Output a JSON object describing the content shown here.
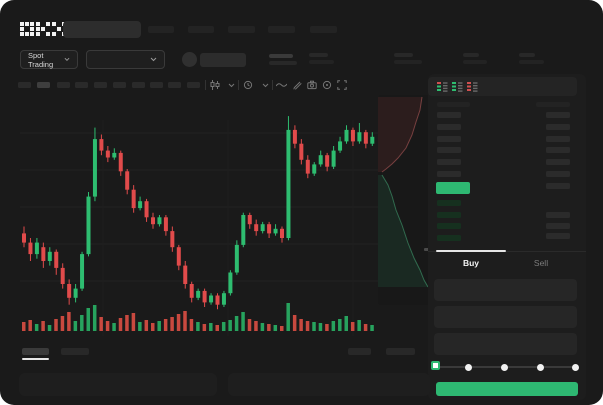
{
  "brand": {
    "logo_text": "OKX"
  },
  "market_bar": {
    "market_selector_label": "Spot Trading"
  },
  "toolbar": {
    "timeframe_button_count": 10,
    "icons": [
      "candlestick-style-icon",
      "chevron-down-icon",
      "interval-clock-icon",
      "chevron-down-icon",
      "wave-line-icon",
      "pencil-draw-icon",
      "camera-icon",
      "circle-indicator-icon",
      "fullscreen-icon"
    ]
  },
  "order_book": {
    "view_icons": [
      "book-both-icon",
      "book-bids-icon",
      "book-asks-icon"
    ],
    "ask_row_count": 6,
    "bid_row_count": 4
  },
  "trade_panel": {
    "buy_tab_label": "Buy",
    "sell_tab_label": "Sell",
    "input_count": 3,
    "slider_stop_count": 5
  },
  "colors": {
    "window_bg": "#1a1a1a",
    "panel_bg": "#1e1e1e",
    "accent_green": "#2eb872",
    "candle_up": "#2ebd70",
    "candle_down": "#e14b4b",
    "volume_up": "#27a35e",
    "volume_down": "#c9493f",
    "depth_ask_line": "#a05555",
    "depth_bid_line": "#3f9e74"
  },
  "chart_data": {
    "type": "candlestick",
    "title": "",
    "value_scale": [
      0,
      100
    ],
    "grid": true,
    "series": [
      {
        "name": "price",
        "candles": [
          [
            42,
            45,
            36,
            38
          ],
          [
            38,
            40,
            30,
            33
          ],
          [
            33,
            40,
            31,
            38
          ],
          [
            36,
            38,
            27,
            30
          ],
          [
            30,
            36,
            28,
            34
          ],
          [
            34,
            35,
            24,
            27
          ],
          [
            27,
            29,
            18,
            20
          ],
          [
            20,
            22,
            11,
            14
          ],
          [
            14,
            20,
            12,
            18
          ],
          [
            18,
            34,
            17,
            33
          ],
          [
            33,
            60,
            32,
            58
          ],
          [
            58,
            88,
            56,
            83
          ],
          [
            83,
            85,
            76,
            78
          ],
          [
            78,
            80,
            73,
            75
          ],
          [
            75,
            79,
            74,
            77
          ],
          [
            77,
            78,
            67,
            69
          ],
          [
            69,
            70,
            59,
            61
          ],
          [
            61,
            63,
            51,
            53
          ],
          [
            53,
            58,
            52,
            56
          ],
          [
            56,
            57,
            47,
            49
          ],
          [
            49,
            51,
            44,
            46
          ],
          [
            46,
            50,
            45,
            49
          ],
          [
            49,
            50,
            41,
            43
          ],
          [
            43,
            45,
            34,
            36
          ],
          [
            36,
            37,
            26,
            28
          ],
          [
            28,
            30,
            18,
            20
          ],
          [
            20,
            21,
            12,
            14
          ],
          [
            14,
            18,
            13,
            17
          ],
          [
            17,
            18,
            10,
            12
          ],
          [
            12,
            16,
            11,
            15
          ],
          [
            15,
            16,
            9,
            11
          ],
          [
            11,
            17,
            10,
            16
          ],
          [
            16,
            26,
            15,
            25
          ],
          [
            25,
            39,
            24,
            37
          ],
          [
            37,
            51,
            36,
            50
          ],
          [
            50,
            51,
            44,
            46
          ],
          [
            46,
            48,
            41,
            43
          ],
          [
            43,
            47,
            42,
            46
          ],
          [
            46,
            47,
            40,
            42
          ],
          [
            42,
            46,
            41,
            44
          ],
          [
            44,
            45,
            38,
            40
          ],
          [
            40,
            93,
            39,
            87
          ],
          [
            87,
            89,
            79,
            81
          ],
          [
            81,
            83,
            72,
            74
          ],
          [
            74,
            76,
            66,
            68
          ],
          [
            68,
            73,
            67,
            72
          ],
          [
            72,
            78,
            71,
            76
          ],
          [
            76,
            77,
            69,
            71
          ],
          [
            71,
            80,
            70,
            78
          ],
          [
            78,
            84,
            77,
            82
          ],
          [
            82,
            89,
            81,
            87
          ],
          [
            87,
            88,
            80,
            82
          ],
          [
            82,
            90,
            81,
            86
          ],
          [
            86,
            87,
            79,
            81
          ],
          [
            81,
            86,
            80,
            84
          ]
        ]
      },
      {
        "name": "volume",
        "values": [
          9,
          11,
          7,
          10,
          6,
          12,
          15,
          19,
          10,
          16,
          23,
          26,
          14,
          10,
          8,
          13,
          16,
          18,
          9,
          11,
          8,
          10,
          12,
          14,
          17,
          20,
          12,
          9,
          7,
          8,
          6,
          9,
          11,
          15,
          19,
          12,
          10,
          8,
          7,
          6,
          5,
          28,
          16,
          12,
          10,
          9,
          8,
          7,
          10,
          12,
          15,
          9,
          11,
          7,
          6
        ]
      }
    ],
    "depth_overlay": {
      "asks_line": [
        [
          44,
          2
        ],
        [
          42,
          15
        ],
        [
          38,
          27
        ],
        [
          34,
          40
        ],
        [
          28,
          53
        ],
        [
          20,
          63
        ],
        [
          14,
          69
        ],
        [
          8,
          74
        ],
        [
          4,
          77
        ]
      ],
      "bids_line": [
        [
          4,
          80
        ],
        [
          10,
          90
        ],
        [
          14,
          101
        ],
        [
          18,
          115
        ],
        [
          24,
          130
        ],
        [
          30,
          148
        ],
        [
          36,
          163
        ],
        [
          42,
          175
        ],
        [
          46,
          185
        ],
        [
          50,
          192
        ]
      ]
    }
  }
}
